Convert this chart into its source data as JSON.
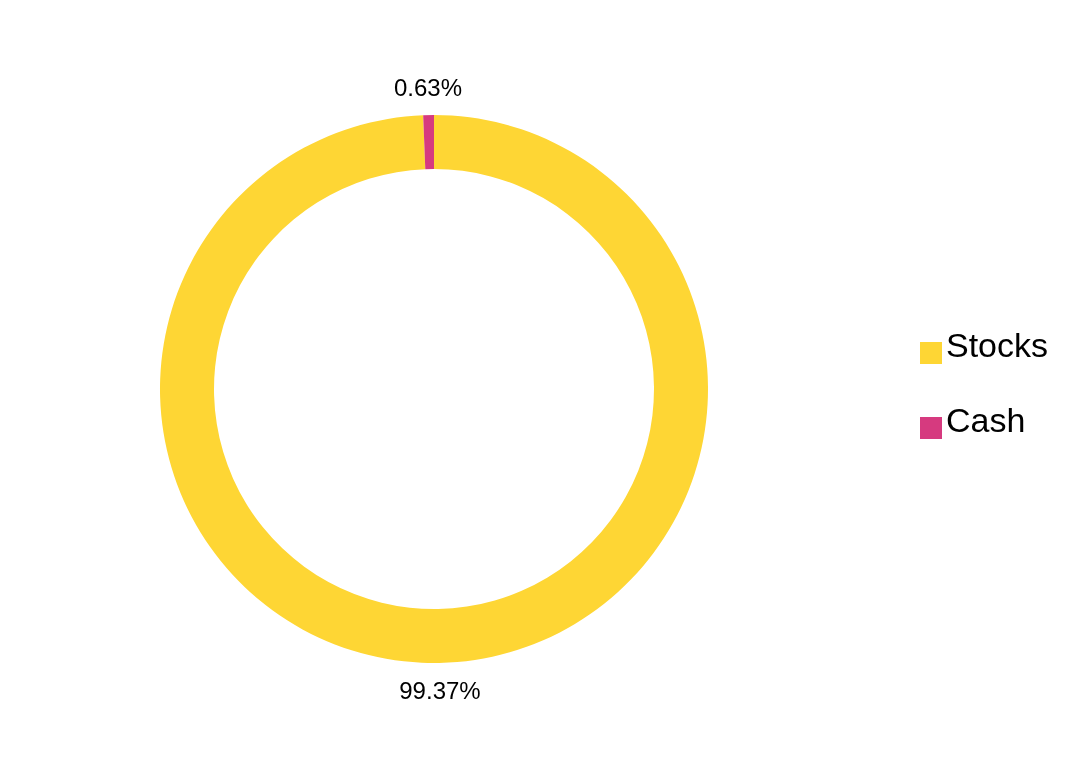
{
  "chart_data": {
    "type": "donut",
    "categories": [
      "Stocks",
      "Cash"
    ],
    "values": [
      99.37,
      0.63
    ],
    "colors": [
      "#fed634",
      "#d63a7f"
    ],
    "value_labels": [
      "99.37%",
      "0.63%"
    ],
    "legend": "right"
  }
}
